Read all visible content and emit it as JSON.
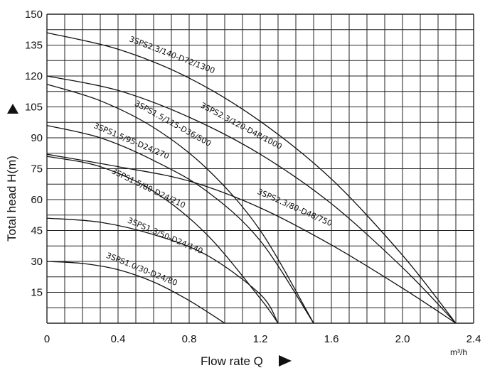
{
  "chart_data": {
    "type": "line",
    "xlabel": "Flow rate Q",
    "ylabel": "Total head H(m)",
    "x_unit": "m³/h",
    "xlim": [
      0,
      2.4
    ],
    "ylim": [
      0,
      150
    ],
    "x_ticks": [
      "0",
      "0.4",
      "0.8",
      "1.2",
      "1.6",
      "2.0",
      "2.4"
    ],
    "y_ticks": [
      "15",
      "30",
      "45",
      "60",
      "75",
      "90",
      "105",
      "120",
      "135",
      "150"
    ],
    "grid": true,
    "series": [
      {
        "name": "3SPS2.3/140-D72/1300",
        "x": [
          0,
          0.4,
          0.8,
          1.2,
          1.6,
          2.0,
          2.3
        ],
        "y": [
          141,
          133,
          119,
          98,
          70,
          33,
          0
        ]
      },
      {
        "name": "3SPS2.3/120-D48/1000",
        "x": [
          0,
          0.4,
          0.8,
          1.2,
          1.6,
          2.0,
          2.3
        ],
        "y": [
          120,
          113,
          100,
          82,
          58,
          27,
          0
        ]
      },
      {
        "name": "3SPS1.5/115-D36/500",
        "x": [
          0,
          0.3,
          0.6,
          0.9,
          1.2,
          1.5
        ],
        "y": [
          116,
          108,
          95,
          75,
          45,
          0
        ]
      },
      {
        "name": "3SPS1.5/95-D24/270",
        "x": [
          0,
          0.3,
          0.6,
          0.9,
          1.2,
          1.5
        ],
        "y": [
          96,
          90,
          79,
          64,
          40,
          0
        ]
      },
      {
        "name": "3SPS2.3/80-D48/750",
        "x": [
          0,
          0.4,
          0.8,
          1.2,
          1.6,
          2.0,
          2.3
        ],
        "y": [
          82,
          76,
          69,
          56,
          38,
          17,
          0
        ]
      },
      {
        "name": "3SPS1.5/80-D24/210",
        "x": [
          0,
          0.3,
          0.6,
          0.9,
          1.2,
          1.3
        ],
        "y": [
          81,
          76,
          64,
          43,
          12,
          0
        ]
      },
      {
        "name": "3SPS1.3/50-D24/140",
        "x": [
          0,
          0.3,
          0.6,
          0.9,
          1.2,
          1.3
        ],
        "y": [
          51,
          49,
          43,
          33,
          14,
          0
        ]
      },
      {
        "name": "3SPS1.0/30-D24/80",
        "x": [
          0,
          0.2,
          0.4,
          0.6,
          0.8,
          1.0
        ],
        "y": [
          30,
          29,
          26,
          20,
          11,
          0
        ]
      }
    ]
  }
}
